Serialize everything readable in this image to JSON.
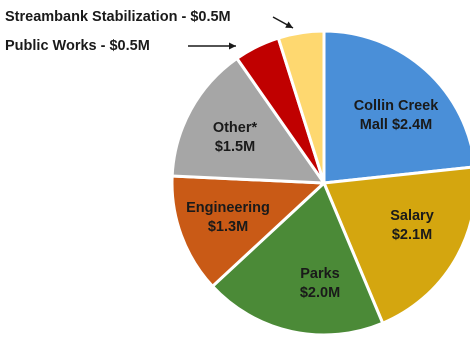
{
  "chart_data": {
    "type": "pie",
    "unit": "$M",
    "slices": [
      {
        "label_lines": [
          "Collin Creek",
          "Mall $2.4M"
        ],
        "value": 2.4,
        "color": "#4a8fd8"
      },
      {
        "label_lines": [
          "Salary",
          "$2.1M"
        ],
        "value": 2.1,
        "color": "#d4a60f"
      },
      {
        "label_lines": [
          "Parks",
          "$2.0M"
        ],
        "value": 2.0,
        "color": "#4b8a37"
      },
      {
        "label_lines": [
          "Engineering",
          "$1.3M"
        ],
        "value": 1.3,
        "color": "#c95a16"
      },
      {
        "label_lines": [
          "Other*",
          "$1.5M"
        ],
        "value": 1.5,
        "color": "#a6a6a6"
      },
      {
        "label": "Public Works - $0.5M",
        "value": 0.5,
        "color": "#c00000",
        "callout": true
      },
      {
        "label": "Streambank Stabilization - $0.5M",
        "value": 0.5,
        "color": "#fed870",
        "callout": true
      }
    ]
  }
}
